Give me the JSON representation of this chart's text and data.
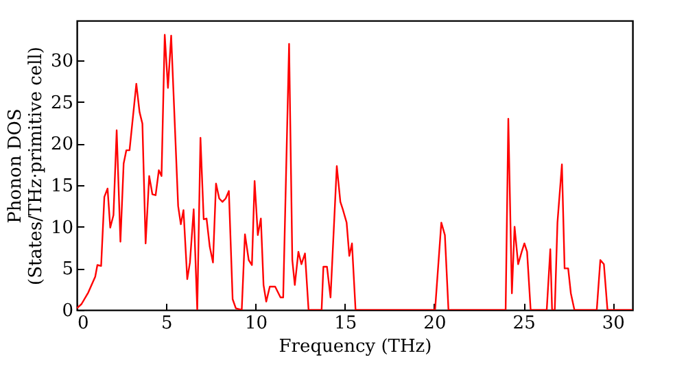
{
  "chart_data": {
    "type": "line",
    "xlabel": "Frequency (THz)",
    "ylabel": "Phonon DOS\n(States/THz·primitive cell)",
    "xlim": [
      0,
      31.1
    ],
    "ylim": [
      0,
      34.8
    ],
    "xticks": [
      0,
      5,
      10,
      15,
      20,
      25,
      30
    ],
    "yticks": [
      0,
      5,
      10,
      15,
      20,
      25,
      30
    ],
    "grid": false,
    "line_style": "solid",
    "series": [
      {
        "color": "#ff0000",
        "x": [
          0,
          0.26,
          0.64,
          1.03,
          1.15,
          1.36,
          1.54,
          1.72,
          1.87,
          2.05,
          2.23,
          2.44,
          2.62,
          2.77,
          2.95,
          3.33,
          3.51,
          3.67,
          3.85,
          4.05,
          4.23,
          4.41,
          4.59,
          4.74,
          4.92,
          5.1,
          5.28,
          5.67,
          5.82,
          5.97,
          6.18,
          6.33,
          6.54,
          6.74,
          6.92,
          7.1,
          7.26,
          7.44,
          7.62,
          7.79,
          7.97,
          8.15,
          8.33,
          8.51,
          8.72,
          8.9,
          9.23,
          9.41,
          9.62,
          9.8,
          9.95,
          10.13,
          10.3,
          10.45,
          10.6,
          10.8,
          11.1,
          11.4,
          11.55,
          11.88,
          12.06,
          12.2,
          12.4,
          12.57,
          12.77,
          12.97,
          13.7,
          13.8,
          14.0,
          14.2,
          14.55,
          14.75,
          14.9,
          15.1,
          15.25,
          15.4,
          15.6,
          20.05,
          20.4,
          20.6,
          20.8,
          24.0,
          24.15,
          24.35,
          24.5,
          24.7,
          24.9,
          25.05,
          25.2,
          25.4,
          26.3,
          26.5,
          26.6,
          26.75,
          26.9,
          27.15,
          27.3,
          27.5,
          27.65,
          27.85,
          29.1,
          29.3,
          29.5,
          29.7,
          31.1
        ],
        "values": [
          0.2,
          0.7,
          2.1,
          4,
          5.4,
          5.3,
          13.6,
          14.6,
          9.9,
          11.4,
          21.6,
          8.2,
          17.6,
          19.2,
          19.2,
          27.2,
          23.8,
          22.4,
          8,
          16.1,
          13.9,
          13.8,
          16.8,
          16.1,
          33.1,
          26.7,
          33,
          12.5,
          10.3,
          12,
          3.7,
          5.7,
          12.1,
          0,
          20.7,
          10.9,
          11,
          7.6,
          5.7,
          15.2,
          13.4,
          13,
          13.4,
          14.3,
          1.3,
          0.2,
          0,
          9.1,
          6,
          5.4,
          15.5,
          9,
          11,
          3,
          1,
          2.8,
          2.8,
          1.5,
          1.5,
          32,
          6,
          3,
          7,
          5.5,
          6.8,
          0,
          0,
          5.2,
          5.2,
          1.5,
          17.3,
          13,
          12,
          10.5,
          6.5,
          8,
          0,
          0,
          10.5,
          9,
          0,
          0,
          23,
          2,
          10,
          5.5,
          7,
          8,
          7,
          0,
          0,
          7.3,
          0,
          0,
          10.5,
          17.5,
          5,
          5,
          2,
          0,
          0,
          6,
          5.5,
          0,
          0
        ]
      }
    ]
  }
}
